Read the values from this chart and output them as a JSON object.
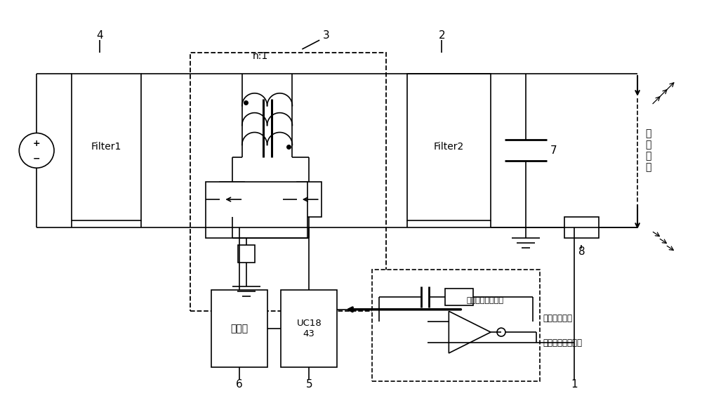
{
  "bg_color": "#ffffff",
  "line_color": "#000000",
  "labels": {
    "filter1": "Filter1",
    "filter2": "Filter2",
    "n1": "n:1",
    "driver": "驱动器",
    "uc1843": "UC18\n43",
    "load_module": "负\n载\n模\n块",
    "peak_current": "峰値电流参考信号",
    "output_current_sample": "输出电流采样",
    "avg_current_ref": "平均电流参考信号"
  }
}
